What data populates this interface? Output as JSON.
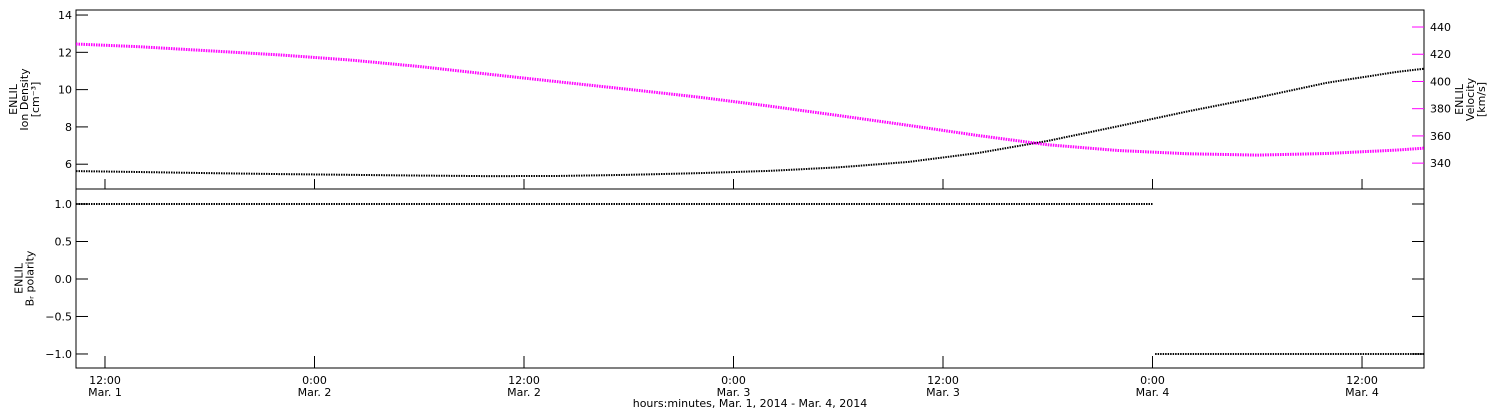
{
  "chart_data": [
    {
      "type": "line",
      "y_label": [
        "ENLIL",
        "Ion Density",
        "[cm⁻³]"
      ],
      "y2_label": [
        "ENLIL",
        "Velocity",
        "[km/s]"
      ],
      "xlim": [
        10.34,
        87.55
      ],
      "ylim": [
        4.67,
        14.27
      ],
      "yticks": [
        6,
        8,
        10,
        12,
        14
      ],
      "y2lim": [
        321,
        452.5
      ],
      "y2ticks": [
        340,
        360,
        380,
        400,
        420,
        440
      ],
      "y2color": "#ff00ff",
      "x": [
        10.34,
        14,
        18,
        22,
        26,
        30,
        34,
        38,
        42,
        46,
        50,
        54,
        58,
        62,
        66,
        70,
        74,
        78,
        82,
        86,
        87.55
      ],
      "series": [
        {
          "color": "#000000",
          "axis": "y",
          "values": [
            5.63,
            5.58,
            5.52,
            5.47,
            5.43,
            5.39,
            5.36,
            5.37,
            5.43,
            5.52,
            5.64,
            5.83,
            6.12,
            6.6,
            7.25,
            8.03,
            8.83,
            9.57,
            10.37,
            10.95,
            11.12
          ]
        },
        {
          "color": "#ff00ff",
          "axis": "y2",
          "values": [
            427.5,
            425.5,
            422.5,
            419.5,
            415.8,
            411,
            405.3,
            399.7,
            394.2,
            388.5,
            382,
            375,
            367.8,
            360.3,
            353.5,
            349.3,
            346.9,
            345.9,
            347.1,
            349.6,
            351
          ]
        }
      ]
    },
    {
      "type": "line",
      "y_label": [
        "ENLIL",
        "Bᵣ polarity"
      ],
      "x_label": "hours:minutes, Mar.  1, 2014 - Mar.  4, 2014",
      "xlim": [
        10.34,
        87.55
      ],
      "xticks": [
        {
          "value": 12,
          "label": "12:00",
          "date": "Mar. 1"
        },
        {
          "value": 24,
          "label": "0:00",
          "date": "Mar. 2"
        },
        {
          "value": 36,
          "label": "12:00",
          "date": "Mar. 2"
        },
        {
          "value": 48,
          "label": "0:00",
          "date": "Mar. 3"
        },
        {
          "value": 60,
          "label": "12:00",
          "date": "Mar. 3"
        },
        {
          "value": 72,
          "label": "0:00",
          "date": "Mar. 4"
        },
        {
          "value": 84,
          "label": "12:00",
          "date": "Mar. 4"
        }
      ],
      "ylim": [
        -1.187,
        1.2
      ],
      "yticks": [
        {
          "value": -1,
          "label": "−1.0"
        },
        {
          "value": -0.5,
          "label": "−0.5"
        },
        {
          "value": 0,
          "label": "0.0"
        },
        {
          "value": 0.5,
          "label": "0.5"
        },
        {
          "value": 1,
          "label": "1.0"
        }
      ],
      "x": [
        10.34,
        72.05,
        72.1,
        72.15,
        87.55
      ],
      "series": [
        {
          "color": "#000000",
          "values": [
            1,
            1,
            null,
            -1,
            -1
          ]
        }
      ]
    }
  ]
}
